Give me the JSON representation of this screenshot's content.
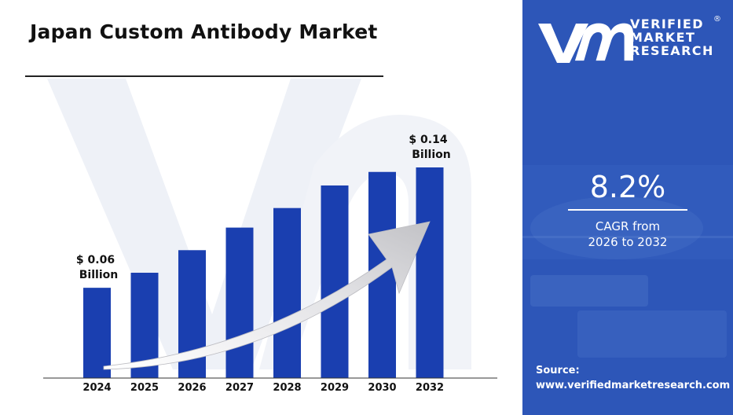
{
  "title": "Japan Custom Antibody Market",
  "brand": {
    "line1": "VERIFIED",
    "line2": "MARKET",
    "line3": "RESEARCH",
    "registered": "®",
    "color": "#2d56b8"
  },
  "highlight": {
    "cagr_value": "8.2%",
    "cagr_label_line1": "CAGR from",
    "cagr_label_line2": "2026 to 2032"
  },
  "source": {
    "label": "Source:",
    "url": "www.verifiedmarketresearch.com"
  },
  "chart_data": {
    "type": "bar",
    "title": "Japan Custom Antibody Market",
    "xlabel": "",
    "ylabel": "",
    "categories": [
      "2024",
      "2025",
      "2026",
      "2027",
      "2028",
      "2029",
      "2030",
      "2032"
    ],
    "values": [
      0.06,
      0.07,
      0.085,
      0.1,
      0.113,
      0.128,
      0.137,
      0.14
    ],
    "unit": "USD Billion",
    "bar_color": "#1a3fb0",
    "annotations": [
      {
        "category": "2024",
        "line1": "$ 0.06",
        "line2": "Billion"
      },
      {
        "category": "2032",
        "line1": "$ 0.14",
        "line2": "Billion"
      }
    ],
    "grid": false,
    "legend": "none"
  }
}
